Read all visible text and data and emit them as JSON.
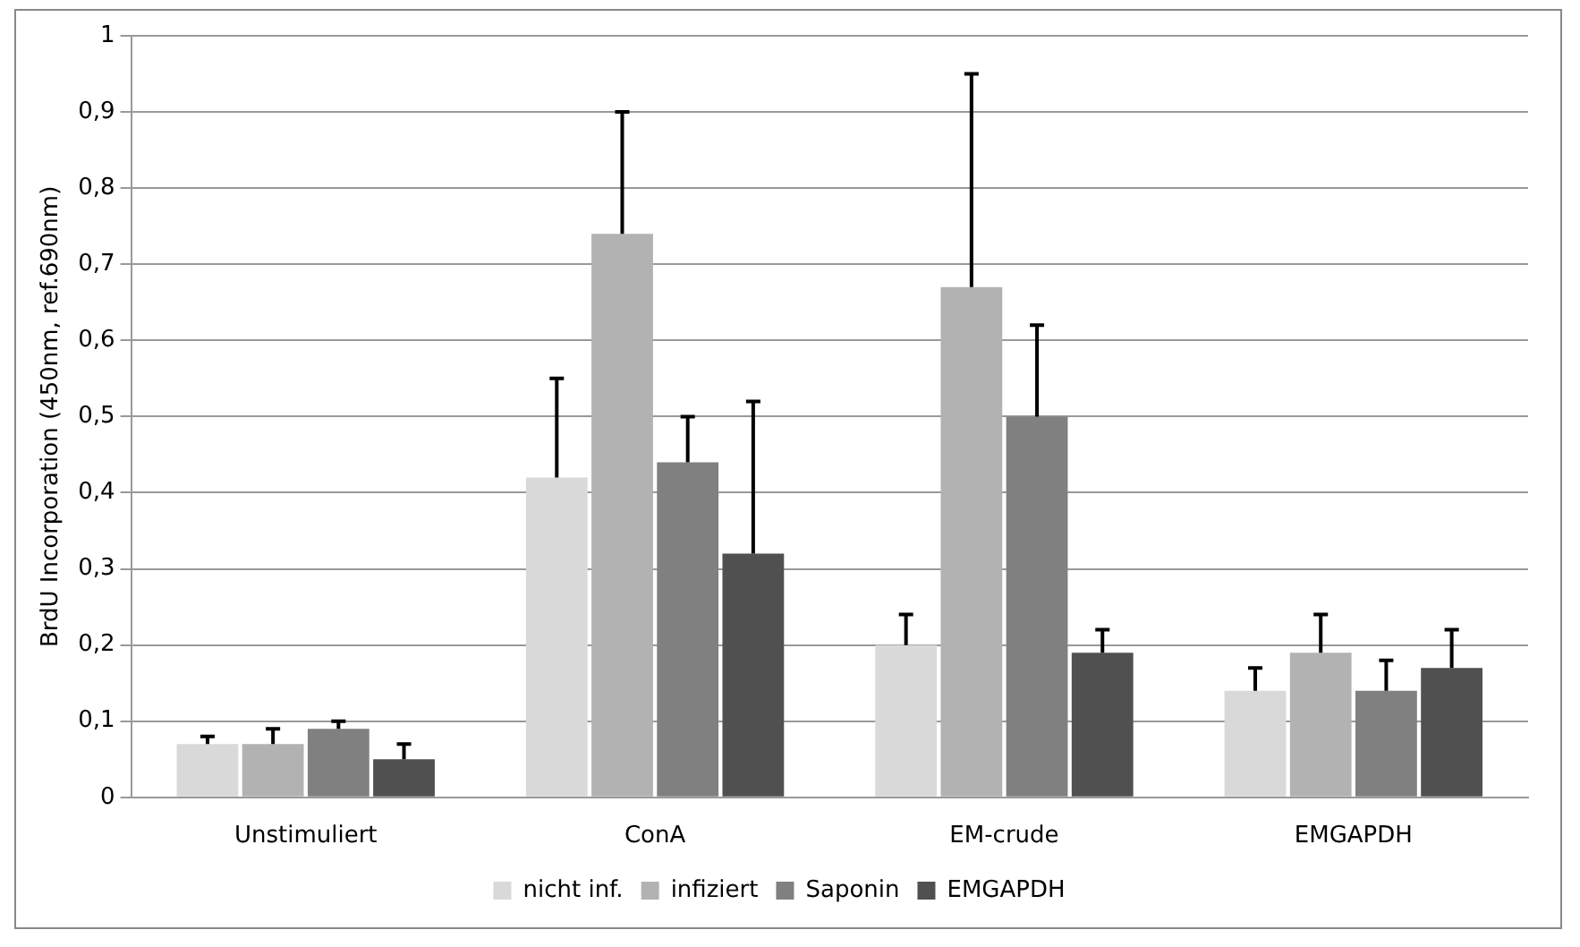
{
  "chart_data": {
    "type": "bar",
    "ylabel": "BrdU Incorporation (450nm, ref.690nm)",
    "categories": [
      "Unstimuliert",
      "ConA",
      "EM-crude",
      "EMGAPDH"
    ],
    "series": [
      {
        "name": "nicht inf.",
        "color": "#d9d9d9",
        "values": [
          0.07,
          0.42,
          0.2,
          0.14
        ],
        "errors": [
          [
            0.07,
            0.08
          ],
          [
            0.42,
            0.55
          ],
          [
            0.2,
            0.24
          ],
          [
            0.14,
            0.17
          ]
        ]
      },
      {
        "name": "infiziert",
        "color": "#b2b2b2",
        "values": [
          0.07,
          0.74,
          0.67,
          0.19
        ],
        "errors": [
          [
            0.07,
            0.09
          ],
          [
            0.74,
            0.9
          ],
          [
            0.67,
            0.95
          ],
          [
            0.19,
            0.24
          ]
        ]
      },
      {
        "name": "Saponin",
        "color": "#808080",
        "values": [
          0.09,
          0.44,
          0.5,
          0.14
        ],
        "errors": [
          [
            0.09,
            0.1
          ],
          [
            0.44,
            0.5
          ],
          [
            0.5,
            0.62
          ],
          [
            0.14,
            0.18
          ]
        ]
      },
      {
        "name": "EMGAPDH",
        "color": "#505050",
        "values": [
          0.05,
          0.32,
          0.19,
          0.17
        ],
        "errors": [
          [
            0.05,
            0.07
          ],
          [
            0.32,
            0.52
          ],
          [
            0.19,
            0.22
          ],
          [
            0.17,
            0.22
          ]
        ]
      }
    ],
    "ylim": [
      0,
      1
    ],
    "yticks": [
      0,
      {
        "value": 0.1,
        "label": "0,1"
      },
      {
        "value": 0.2,
        "label": "0,2"
      },
      {
        "value": 0.3,
        "label": "0,3"
      },
      {
        "value": 0.4,
        "label": "0,4"
      },
      {
        "value": 0.5,
        "label": "0,5"
      },
      {
        "value": 0.6,
        "label": "0,6"
      },
      {
        "value": 0.7,
        "label": "0,7"
      },
      {
        "value": 0.8,
        "label": "0,8"
      },
      {
        "value": 0.9,
        "label": "0,9"
      },
      1
    ],
    "grid": "y",
    "legend": "bottom"
  }
}
